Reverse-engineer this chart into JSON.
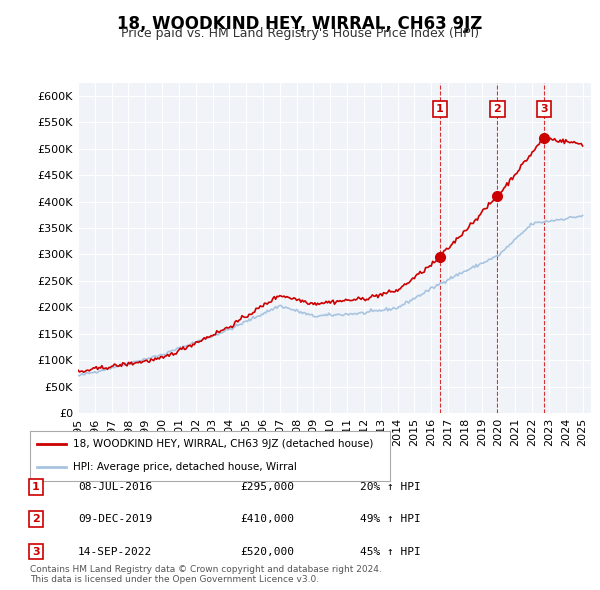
{
  "title": "18, WOODKIND HEY, WIRRAL, CH63 9JZ",
  "subtitle": "Price paid vs. HM Land Registry's House Price Index (HPI)",
  "ylabel": "",
  "ylim": [
    0,
    625000
  ],
  "yticks": [
    0,
    50000,
    100000,
    150000,
    200000,
    250000,
    300000,
    350000,
    400000,
    450000,
    500000,
    550000,
    600000
  ],
  "xlim_start": 1995.0,
  "xlim_end": 2025.5,
  "hpi_color": "#a8c4e0",
  "price_color": "#cc0000",
  "vline_color": "#cc0000",
  "background_color": "#f0f4f8",
  "transactions": [
    {
      "num": 1,
      "date_x": 2016.52,
      "price": 295000,
      "label": "08-JUL-2016",
      "price_str": "£295,000",
      "hpi_str": "20% ↑ HPI"
    },
    {
      "num": 2,
      "date_x": 2019.94,
      "price": 410000,
      "label": "09-DEC-2019",
      "price_str": "£410,000",
      "hpi_str": "49% ↑ HPI"
    },
    {
      "num": 3,
      "date_x": 2022.71,
      "price": 520000,
      "label": "14-SEP-2022",
      "price_str": "£520,000",
      "hpi_str": "45% ↑ HPI"
    }
  ],
  "legend_label_red": "18, WOODKIND HEY, WIRRAL, CH63 9JZ (detached house)",
  "legend_label_blue": "HPI: Average price, detached house, Wirral",
  "footer": "Contains HM Land Registry data © Crown copyright and database right 2024.\nThis data is licensed under the Open Government Licence v3.0."
}
